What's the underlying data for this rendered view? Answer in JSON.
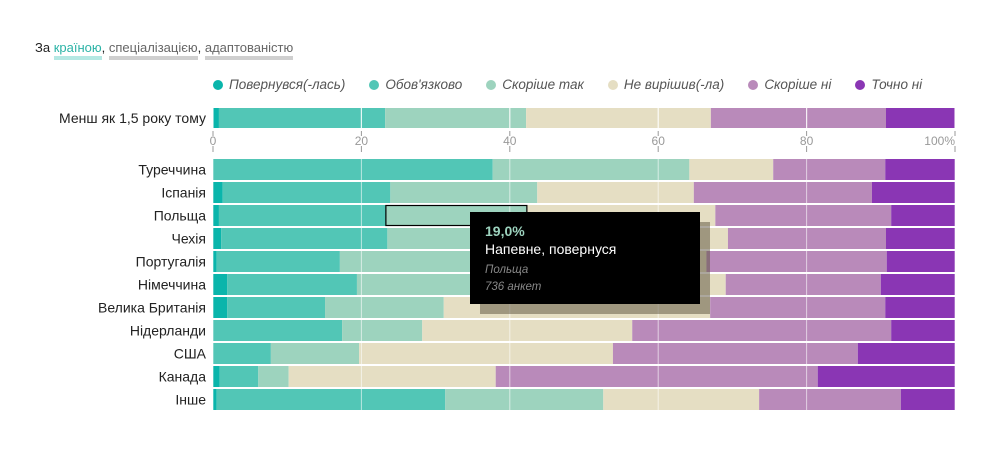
{
  "filters": {
    "prefix": "За",
    "items": [
      {
        "label": "країною",
        "active": true
      },
      {
        "label": "спеціалізацією",
        "active": false
      },
      {
        "label": "адаптованістю",
        "active": false
      }
    ],
    "sep": ","
  },
  "colors": [
    "#0ab5ab",
    "#52c6b6",
    "#9dd3be",
    "#e5dec3",
    "#b98aba",
    "#8a36b4"
  ],
  "chart_data": {
    "type": "bar",
    "orientation": "horizontal",
    "stacked": true,
    "series_names": [
      "Повернувся(-лась)",
      "Обов'язково",
      "Скоріше так",
      "Не вирішив(-ла)",
      "Скоріше ні",
      "Точно ні"
    ],
    "xlim": [
      0,
      100
    ],
    "xticks": [
      "0",
      "20",
      "40",
      "60",
      "80",
      "100%"
    ],
    "grid": true,
    "legend": "top",
    "summary": {
      "label": "Менш як 1,5 року тому",
      "values": [
        0.8,
        22.4,
        19.0,
        24.9,
        23.6,
        9.3
      ]
    },
    "categories": [
      "Туреччина",
      "Іспанія",
      "Польща",
      "Чехія",
      "Португалія",
      "Німеччина",
      "Велика Британія",
      "Нідерланди",
      "США",
      "Канада",
      "Інше"
    ],
    "values": [
      [
        0,
        37.7,
        26.5,
        11.3,
        15.1,
        9.4
      ],
      [
        1.3,
        22.6,
        19.8,
        21.1,
        24.0,
        11.2
      ],
      [
        0.8,
        22.5,
        19.0,
        25.4,
        23.7,
        8.6
      ],
      [
        1.1,
        22.4,
        20.5,
        25.4,
        21.3,
        9.3
      ],
      [
        0.5,
        16.6,
        22.9,
        26.5,
        24.3,
        9.2
      ],
      [
        1.9,
        17.5,
        22.6,
        27.1,
        20.9,
        10.0
      ],
      [
        1.9,
        13.2,
        16.0,
        35.9,
        23.6,
        9.4
      ],
      [
        0,
        17.4,
        10.8,
        28.3,
        34.9,
        8.6
      ],
      [
        0,
        7.8,
        11.9,
        34.2,
        33.0,
        13.1
      ],
      [
        0.9,
        5.2,
        4.1,
        27.9,
        43.4,
        18.5
      ],
      [
        0.5,
        30.8,
        21.3,
        21.0,
        19.1,
        7.3
      ]
    ]
  },
  "tooltip": {
    "value": "19,0%",
    "label": "Напевне, повернуся",
    "country": "Польща",
    "count": "736 анкет",
    "row": 2,
    "series": 2
  }
}
